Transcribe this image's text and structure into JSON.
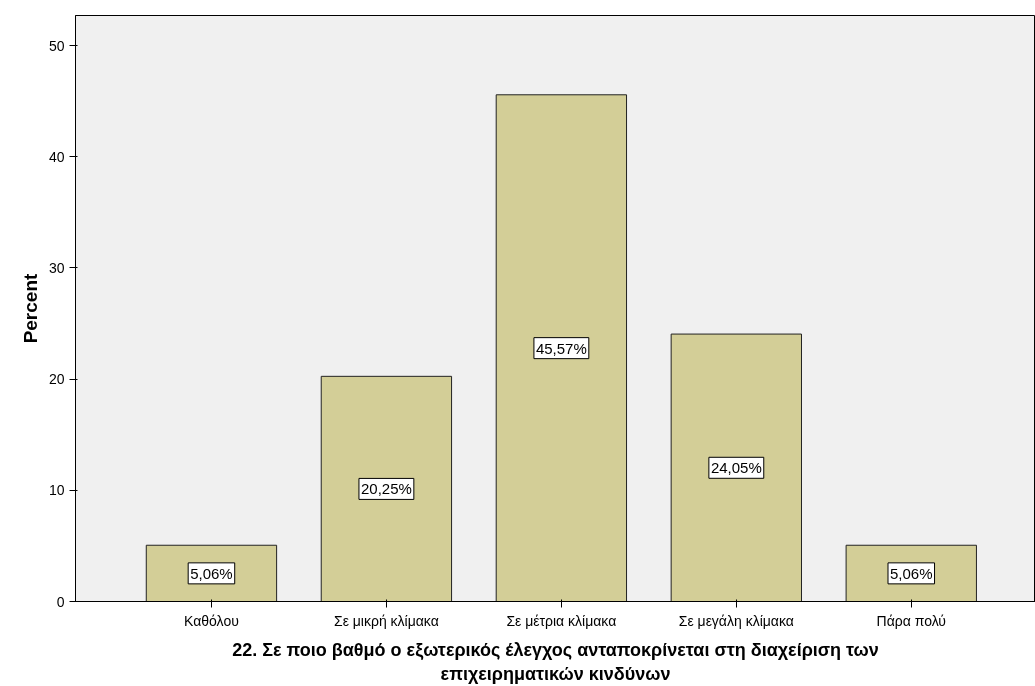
{
  "chart_data": {
    "type": "bar",
    "categories": [
      "Καθόλου",
      "Σε μικρή κλίμακα",
      "Σε μέτρια κλίμακα",
      "Σε μεγάλη κλίμακα",
      "Πάρα πολύ"
    ],
    "values": [
      5.06,
      20.25,
      45.57,
      24.05,
      5.06
    ],
    "value_labels": [
      "5,06%",
      "20,25%",
      "45,57%",
      "24,05%",
      "5,06%"
    ],
    "color": "#d3ce97",
    "xlabel": "22. Σε ποιο βαθμό ο εξωτερικός έλεγχος ανταποκρίνεται στη διαχείριση των επιχειρηματικών κινδύνων",
    "ylabel": "Percent",
    "ylim": [
      0,
      52.7
    ],
    "yticks": [
      0,
      10,
      20,
      30,
      40,
      50
    ],
    "grid": false
  }
}
